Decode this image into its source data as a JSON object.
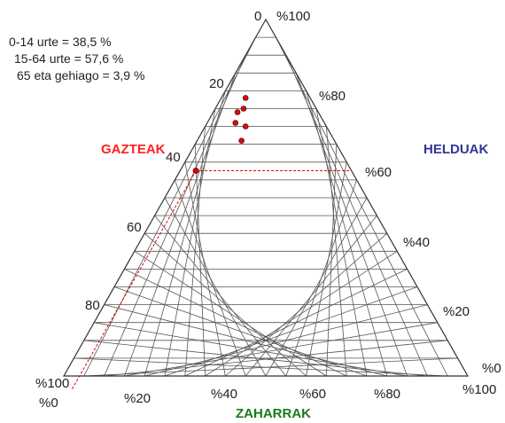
{
  "stats": {
    "line1": "0-14 urte = 38,5 %",
    "line2": "15-64 urte = 57,6 %",
    "line3": "65 eta gehiago = 3,9 %"
  },
  "axes": {
    "gazteak": {
      "title": "GAZTEAK",
      "color": "#ff2020",
      "ticks": [
        "20",
        "40",
        "60",
        "80",
        "%100"
      ]
    },
    "helduak": {
      "title": "HELDUAK",
      "color": "#333399",
      "ticks": [
        "%100",
        "%80",
        "%60",
        "%40",
        "%20",
        "%0"
      ]
    },
    "zaharrak": {
      "title": "ZAHARRAK",
      "color": "#1a7a1a",
      "ticks": [
        "%0",
        "%20",
        "%40",
        "%60",
        "%80",
        "%100"
      ]
    },
    "apex_zero": "0"
  },
  "highlight": {
    "gazteak": 38.5,
    "helduak": 57.6,
    "zaharrak": 3.9,
    "color": "#dd0000"
  },
  "cluster_points": [
    {
      "zaharrak": 6,
      "gazteak": 16,
      "helduak": 78
    },
    {
      "zaharrak": 7,
      "gazteak": 18,
      "helduak": 75
    },
    {
      "zaharrak": 6,
      "gazteak": 20,
      "helduak": 74
    },
    {
      "zaharrak": 7,
      "gazteak": 22,
      "helduak": 71
    },
    {
      "zaharrak": 10,
      "gazteak": 20,
      "helduak": 70
    },
    {
      "zaharrak": 11,
      "gazteak": 23,
      "helduak": 66
    }
  ]
}
